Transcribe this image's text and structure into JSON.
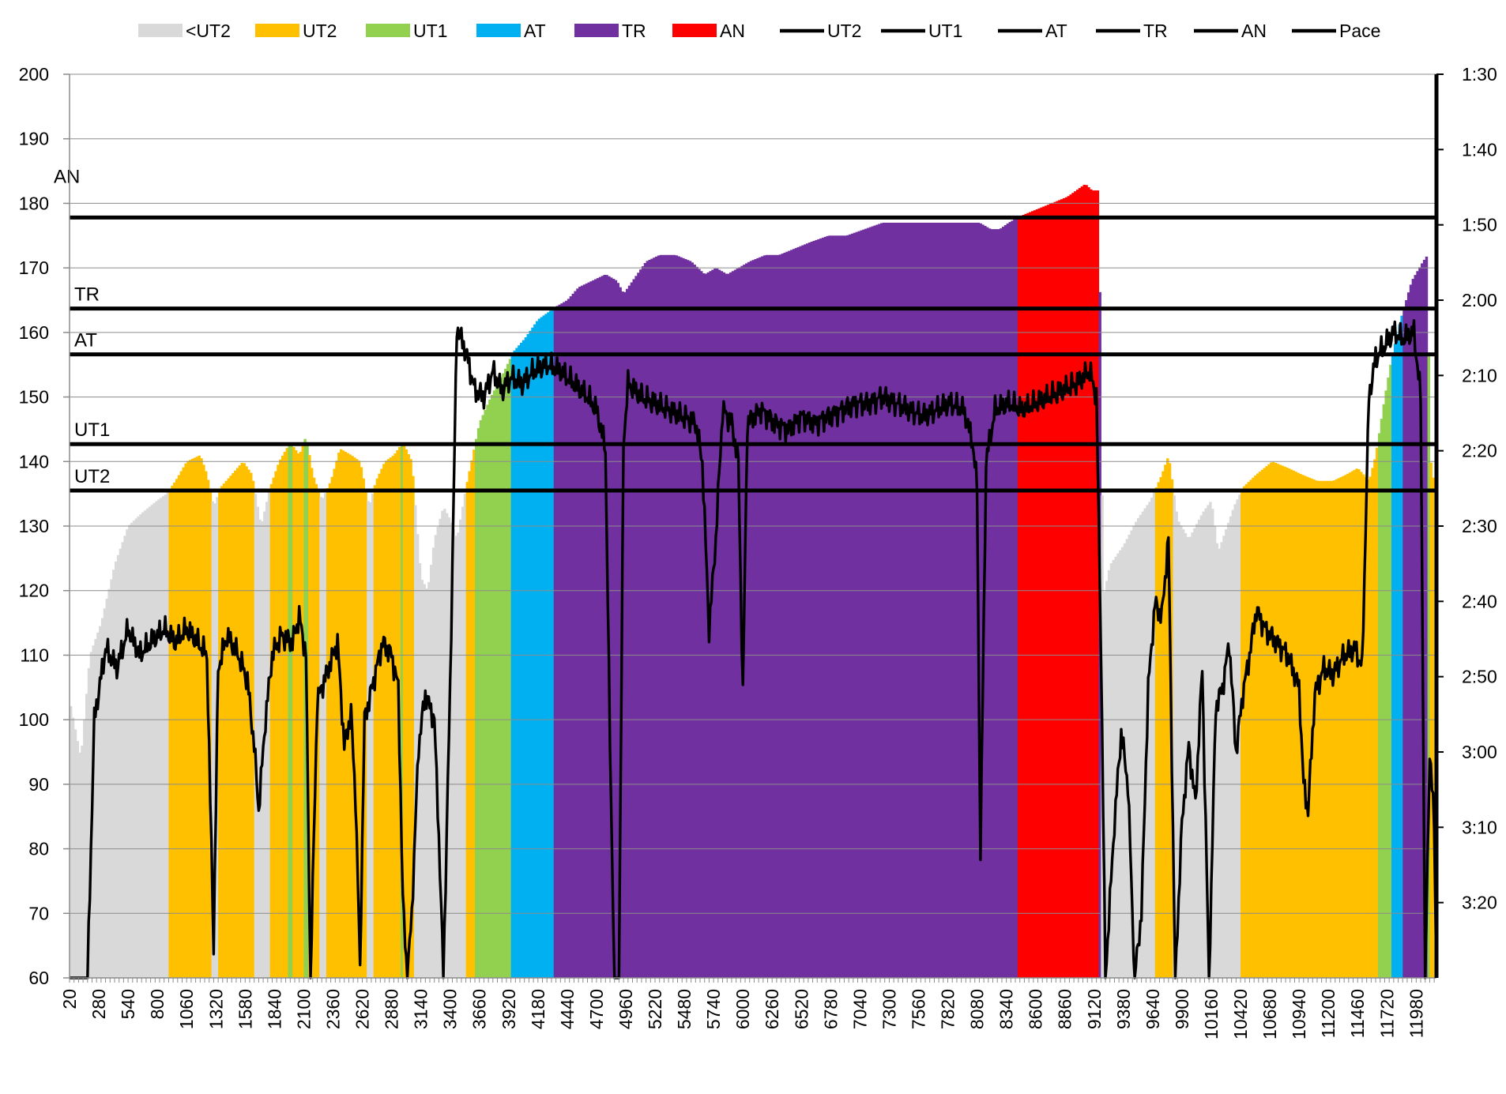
{
  "chart_data": {
    "type": "bar",
    "title": "",
    "xlabel": "",
    "ylabel": "",
    "ylim": [
      60,
      200
    ],
    "yticks": [
      60,
      70,
      80,
      90,
      100,
      110,
      120,
      130,
      140,
      150,
      160,
      170,
      180,
      190,
      200
    ],
    "y2lim": [
      "1:30",
      "3:30"
    ],
    "y2ticks": [
      "1:30",
      "1:40",
      "1:50",
      "2:00",
      "2:10",
      "2:20",
      "2:30",
      "2:40",
      "2:50",
      "3:00",
      "3:10",
      "3:20"
    ],
    "xlim": [
      20,
      12160
    ],
    "xticks": [
      20,
      280,
      540,
      800,
      1060,
      1320,
      1580,
      1840,
      2100,
      2360,
      2620,
      2880,
      3140,
      3400,
      3660,
      3920,
      4180,
      4440,
      4700,
      4960,
      5220,
      5480,
      5740,
      6000,
      6260,
      6520,
      6780,
      7040,
      7300,
      7560,
      7820,
      8080,
      8340,
      8600,
      8860,
      9120,
      9380,
      9640,
      9900,
      10160,
      10420,
      10680,
      10940,
      11200,
      11460,
      11720,
      11980
    ],
    "grid": "horizontal",
    "legend_position": "top",
    "legend": [
      {
        "label": "<UT2",
        "kind": "bar",
        "color": "#d9d9d9"
      },
      {
        "label": "UT2",
        "kind": "bar",
        "color": "#ffc000"
      },
      {
        "label": "UT1",
        "kind": "bar",
        "color": "#92d050"
      },
      {
        "label": "AT",
        "kind": "bar",
        "color": "#00b0f0"
      },
      {
        "label": "TR",
        "kind": "bar",
        "color": "#7030a0"
      },
      {
        "label": "AN",
        "kind": "bar",
        "color": "#ff0000"
      },
      {
        "label": "UT2",
        "kind": "line",
        "color": "#000000"
      },
      {
        "label": "UT1",
        "kind": "line",
        "color": "#000000"
      },
      {
        "label": "AT",
        "kind": "line",
        "color": "#000000"
      },
      {
        "label": "TR",
        "kind": "line",
        "color": "#000000"
      },
      {
        "label": "AN",
        "kind": "line",
        "color": "#000000"
      },
      {
        "label": "Pace",
        "kind": "line",
        "color": "#000000"
      }
    ],
    "zone_colors": {
      "<UT2": "#d9d9d9",
      "UT2": "#ffc000",
      "UT1": "#92d050",
      "AT": "#00b0f0",
      "TR": "#7030a0",
      "AN": "#ff0000"
    },
    "threshold_lines": [
      {
        "name": "UT2",
        "value": 135.5
      },
      {
        "name": "UT1",
        "value": 142.7
      },
      {
        "name": "AT",
        "value": 156.6
      },
      {
        "name": "TR",
        "value": 163.7
      },
      {
        "name": "AN",
        "value": 177.8
      }
    ],
    "heart_rate_anchors": [
      [
        20,
        103
      ],
      [
        120,
        94
      ],
      [
        200,
        110
      ],
      [
        300,
        115
      ],
      [
        420,
        124
      ],
      [
        540,
        130
      ],
      [
        660,
        132
      ],
      [
        800,
        134
      ],
      [
        880,
        135
      ],
      [
        960,
        137
      ],
      [
        1060,
        140
      ],
      [
        1180,
        141
      ],
      [
        1240,
        138
      ],
      [
        1300,
        133
      ],
      [
        1360,
        136
      ],
      [
        1460,
        138
      ],
      [
        1560,
        140
      ],
      [
        1640,
        138
      ],
      [
        1720,
        130
      ],
      [
        1800,
        136
      ],
      [
        1880,
        140
      ],
      [
        1980,
        143
      ],
      [
        2060,
        141
      ],
      [
        2120,
        144
      ],
      [
        2180,
        138
      ],
      [
        2260,
        134
      ],
      [
        2340,
        137
      ],
      [
        2420,
        142
      ],
      [
        2520,
        141
      ],
      [
        2600,
        140
      ],
      [
        2680,
        133
      ],
      [
        2740,
        137
      ],
      [
        2820,
        140
      ],
      [
        2900,
        141
      ],
      [
        2980,
        143
      ],
      [
        3060,
        140
      ],
      [
        3140,
        122
      ],
      [
        3200,
        120
      ],
      [
        3260,
        128
      ],
      [
        3340,
        133
      ],
      [
        3400,
        131
      ],
      [
        3460,
        128
      ],
      [
        3540,
        136
      ],
      [
        3600,
        141
      ],
      [
        3660,
        146
      ],
      [
        3760,
        150
      ],
      [
        3880,
        154
      ],
      [
        3960,
        157
      ],
      [
        4060,
        159
      ],
      [
        4180,
        162
      ],
      [
        4260,
        163
      ],
      [
        4340,
        164
      ],
      [
        4440,
        165
      ],
      [
        4540,
        167
      ],
      [
        4660,
        168
      ],
      [
        4780,
        169
      ],
      [
        4880,
        168
      ],
      [
        4940,
        166
      ],
      [
        5020,
        168
      ],
      [
        5140,
        171
      ],
      [
        5260,
        172
      ],
      [
        5400,
        172
      ],
      [
        5540,
        171
      ],
      [
        5660,
        169
      ],
      [
        5760,
        170
      ],
      [
        5860,
        169
      ],
      [
        5960,
        170
      ],
      [
        6060,
        171
      ],
      [
        6200,
        172
      ],
      [
        6320,
        172
      ],
      [
        6460,
        173
      ],
      [
        6600,
        174
      ],
      [
        6760,
        175
      ],
      [
        6920,
        175
      ],
      [
        7080,
        176
      ],
      [
        7240,
        177
      ],
      [
        7400,
        177
      ],
      [
        7560,
        177
      ],
      [
        7700,
        177
      ],
      [
        7820,
        177
      ],
      [
        7960,
        177
      ],
      [
        8100,
        177
      ],
      [
        8200,
        176
      ],
      [
        8280,
        176
      ],
      [
        8360,
        177
      ],
      [
        8460,
        178
      ],
      [
        8600,
        179
      ],
      [
        8740,
        180
      ],
      [
        8880,
        181
      ],
      [
        8960,
        182
      ],
      [
        9040,
        183
      ],
      [
        9100,
        182
      ],
      [
        9160,
        182
      ],
      [
        9200,
        119
      ],
      [
        9260,
        124
      ],
      [
        9380,
        127
      ],
      [
        9500,
        131
      ],
      [
        9620,
        134
      ],
      [
        9720,
        138
      ],
      [
        9780,
        141
      ],
      [
        9860,
        131
      ],
      [
        9960,
        128
      ],
      [
        10080,
        132
      ],
      [
        10160,
        134
      ],
      [
        10220,
        126
      ],
      [
        10300,
        130
      ],
      [
        10360,
        133
      ],
      [
        10440,
        136
      ],
      [
        10560,
        138
      ],
      [
        10700,
        140
      ],
      [
        10840,
        139
      ],
      [
        10960,
        138
      ],
      [
        11100,
        137
      ],
      [
        11240,
        137
      ],
      [
        11360,
        138
      ],
      [
        11460,
        139
      ],
      [
        11560,
        137
      ],
      [
        11620,
        141
      ],
      [
        11700,
        150
      ],
      [
        11760,
        156
      ],
      [
        11840,
        162
      ],
      [
        11940,
        168
      ],
      [
        12040,
        171
      ],
      [
        12080,
        172
      ],
      [
        12100,
        141
      ],
      [
        12160,
        134
      ]
    ],
    "pace_seconds_axis": [
      90,
      210
    ],
    "pace_anchors": [
      [
        20,
        60
      ],
      [
        180,
        60
      ],
      [
        240,
        100
      ],
      [
        340,
        111
      ],
      [
        440,
        108
      ],
      [
        540,
        114
      ],
      [
        640,
        110
      ],
      [
        740,
        112
      ],
      [
        860,
        114
      ],
      [
        960,
        112
      ],
      [
        1060,
        114
      ],
      [
        1160,
        112
      ],
      [
        1240,
        110
      ],
      [
        1300,
        65
      ],
      [
        1340,
        108
      ],
      [
        1420,
        113
      ],
      [
        1520,
        110
      ],
      [
        1600,
        106
      ],
      [
        1660,
        96
      ],
      [
        1700,
        86
      ],
      [
        1760,
        100
      ],
      [
        1820,
        110
      ],
      [
        1900,
        113
      ],
      [
        2000,
        112
      ],
      [
        2060,
        116
      ],
      [
        2120,
        110
      ],
      [
        2160,
        60
      ],
      [
        2220,
        103
      ],
      [
        2320,
        108
      ],
      [
        2400,
        112
      ],
      [
        2460,
        96
      ],
      [
        2520,
        101
      ],
      [
        2560,
        88
      ],
      [
        2600,
        62
      ],
      [
        2640,
        100
      ],
      [
        2720,
        106
      ],
      [
        2800,
        112
      ],
      [
        2880,
        110
      ],
      [
        2940,
        105
      ],
      [
        2980,
        72
      ],
      [
        3020,
        60
      ],
      [
        3060,
        70
      ],
      [
        3120,
        96
      ],
      [
        3180,
        104
      ],
      [
        3260,
        100
      ],
      [
        3300,
        82
      ],
      [
        3340,
        60
      ],
      [
        3400,
        105
      ],
      [
        3460,
        161
      ],
      [
        3540,
        157
      ],
      [
        3620,
        151
      ],
      [
        3700,
        150
      ],
      [
        3780,
        154
      ],
      [
        3860,
        151
      ],
      [
        3940,
        153
      ],
      [
        4040,
        152
      ],
      [
        4140,
        154
      ],
      [
        4260,
        155
      ],
      [
        4380,
        154
      ],
      [
        4500,
        152
      ],
      [
        4620,
        150
      ],
      [
        4700,
        148
      ],
      [
        4780,
        142
      ],
      [
        4820,
        96
      ],
      [
        4860,
        60
      ],
      [
        4900,
        60
      ],
      [
        4940,
        143
      ],
      [
        4980,
        152
      ],
      [
        5100,
        150
      ],
      [
        5220,
        149
      ],
      [
        5340,
        148
      ],
      [
        5460,
        147
      ],
      [
        5580,
        146
      ],
      [
        5640,
        140
      ],
      [
        5700,
        114
      ],
      [
        5760,
        128
      ],
      [
        5820,
        148
      ],
      [
        5900,
        146
      ],
      [
        5960,
        140
      ],
      [
        6000,
        104
      ],
      [
        6040,
        146
      ],
      [
        6160,
        148
      ],
      [
        6280,
        146
      ],
      [
        6400,
        145
      ],
      [
        6520,
        147
      ],
      [
        6640,
        146
      ],
      [
        6760,
        147
      ],
      [
        6880,
        148
      ],
      [
        7000,
        149
      ],
      [
        7120,
        149
      ],
      [
        7240,
        150
      ],
      [
        7360,
        149
      ],
      [
        7480,
        148
      ],
      [
        7600,
        147
      ],
      [
        7720,
        148
      ],
      [
        7840,
        149
      ],
      [
        7960,
        148
      ],
      [
        8040,
        143
      ],
      [
        8080,
        136
      ],
      [
        8110,
        79
      ],
      [
        8160,
        140
      ],
      [
        8240,
        148
      ],
      [
        8360,
        149
      ],
      [
        8480,
        148
      ],
      [
        8600,
        149
      ],
      [
        8720,
        150
      ],
      [
        8840,
        151
      ],
      [
        8960,
        152
      ],
      [
        9080,
        154
      ],
      [
        9140,
        150
      ],
      [
        9180,
        112
      ],
      [
        9220,
        60
      ],
      [
        9260,
        72
      ],
      [
        9300,
        84
      ],
      [
        9360,
        98
      ],
      [
        9420,
        90
      ],
      [
        9480,
        60
      ],
      [
        9540,
        70
      ],
      [
        9600,
        105
      ],
      [
        9660,
        118
      ],
      [
        9720,
        116
      ],
      [
        9780,
        128
      ],
      [
        9840,
        60
      ],
      [
        9900,
        84
      ],
      [
        9960,
        96
      ],
      [
        10020,
        87
      ],
      [
        10080,
        108
      ],
      [
        10140,
        60
      ],
      [
        10200,
        102
      ],
      [
        10260,
        105
      ],
      [
        10320,
        112
      ],
      [
        10380,
        95
      ],
      [
        10440,
        104
      ],
      [
        10500,
        110
      ],
      [
        10560,
        117
      ],
      [
        10640,
        114
      ],
      [
        10740,
        112
      ],
      [
        10840,
        110
      ],
      [
        10940,
        105
      ],
      [
        10980,
        90
      ],
      [
        11020,
        86
      ],
      [
        11080,
        104
      ],
      [
        11160,
        108
      ],
      [
        11240,
        107
      ],
      [
        11340,
        110
      ],
      [
        11440,
        111
      ],
      [
        11500,
        108
      ],
      [
        11560,
        150
      ],
      [
        11620,
        156
      ],
      [
        11700,
        158
      ],
      [
        11780,
        160
      ],
      [
        11860,
        159
      ],
      [
        11960,
        160
      ],
      [
        12020,
        150
      ],
      [
        12060,
        60
      ],
      [
        12100,
        95
      ],
      [
        12140,
        84
      ],
      [
        12160,
        60
      ]
    ]
  }
}
